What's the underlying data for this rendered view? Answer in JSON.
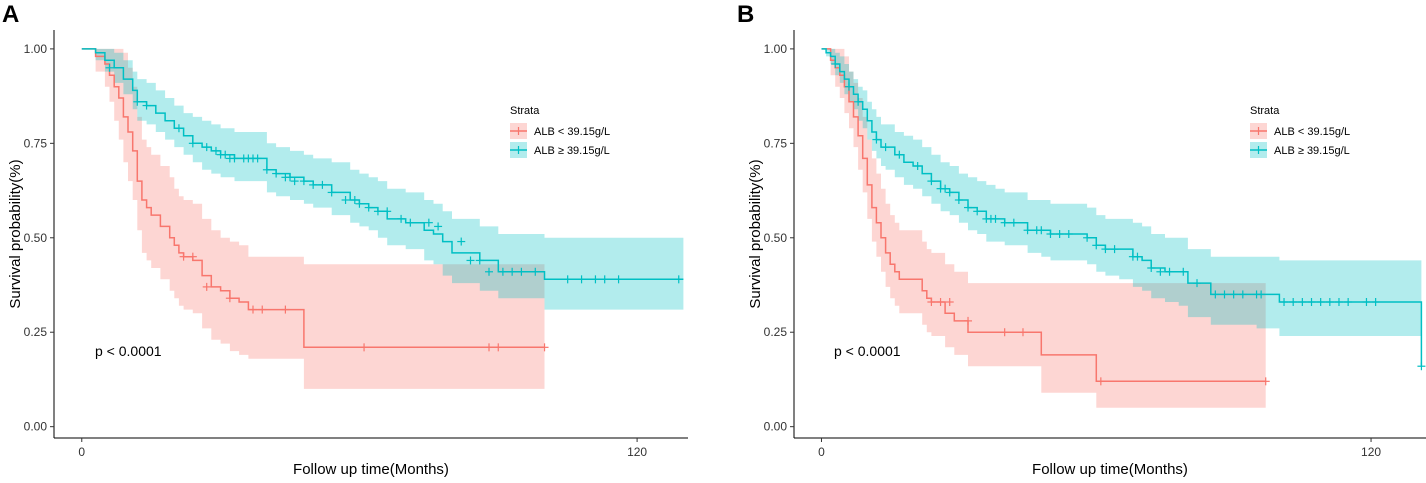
{
  "chart_data": [
    {
      "type": "line",
      "panel_label": "A",
      "xlabel": "Follow up time(Months)",
      "ylabel": "Survival probability(%)",
      "xlim": [
        -6,
        131
      ],
      "ylim": [
        -0.03,
        1.05
      ],
      "x_ticks": [
        0,
        120
      ],
      "x_tick_labels": [
        "0",
        "120"
      ],
      "y_ticks": [
        0,
        0.25,
        0.5,
        0.75,
        1.0
      ],
      "y_tick_labels": [
        "0.00",
        "0.25",
        "0.50",
        "0.75",
        "1.00"
      ],
      "legend": {
        "title": "Strata",
        "position": "top-right"
      },
      "annotation": "p < 0.0001",
      "series": [
        {
          "name": "ALB < 39.15g/L",
          "color": "#F8766D",
          "fill": "#F8766D",
          "x": [
            0,
            3,
            5,
            6,
            7,
            8,
            9,
            10,
            11,
            12,
            13,
            14,
            15,
            17,
            19,
            20,
            21,
            22,
            23,
            24,
            26,
            28,
            30,
            32,
            34,
            36,
            38,
            40,
            42,
            44,
            48,
            60,
            80,
            100
          ],
          "y": [
            1.0,
            0.98,
            0.96,
            0.93,
            0.9,
            0.87,
            0.82,
            0.78,
            0.73,
            0.65,
            0.6,
            0.58,
            0.56,
            0.53,
            0.5,
            0.48,
            0.46,
            0.45,
            0.45,
            0.44,
            0.4,
            0.37,
            0.36,
            0.34,
            0.33,
            0.31,
            0.31,
            0.31,
            0.31,
            0.31,
            0.21,
            0.21,
            0.21,
            0.21
          ],
          "lower": [
            1.0,
            0.94,
            0.9,
            0.86,
            0.81,
            0.76,
            0.7,
            0.65,
            0.6,
            0.52,
            0.46,
            0.44,
            0.42,
            0.39,
            0.36,
            0.34,
            0.32,
            0.31,
            0.31,
            0.3,
            0.26,
            0.23,
            0.22,
            0.2,
            0.19,
            0.18,
            0.18,
            0.18,
            0.18,
            0.18,
            0.1,
            0.1,
            0.1,
            0.1
          ],
          "upper": [
            1.0,
            1.0,
            1.0,
            1.0,
            1.0,
            1.0,
            0.99,
            0.95,
            0.9,
            0.82,
            0.76,
            0.74,
            0.72,
            0.69,
            0.66,
            0.63,
            0.61,
            0.6,
            0.6,
            0.59,
            0.55,
            0.52,
            0.5,
            0.49,
            0.48,
            0.45,
            0.45,
            0.45,
            0.45,
            0.45,
            0.43,
            0.43,
            0.43,
            0.43
          ],
          "censored_x": [
            22,
            24,
            27,
            32,
            37,
            39,
            44,
            61,
            88,
            90,
            100
          ],
          "censored_y": [
            0.45,
            0.45,
            0.37,
            0.34,
            0.31,
            0.31,
            0.31,
            0.21,
            0.21,
            0.21,
            0.21
          ]
        },
        {
          "name": "ALB ≥ 39.15g/L",
          "color": "#00BFC4",
          "fill": "#00BFC4",
          "x": [
            0,
            3,
            5,
            7,
            9,
            11,
            12,
            14,
            16,
            18,
            20,
            22,
            24,
            26,
            28,
            30,
            33,
            36,
            38,
            40,
            42,
            45,
            48,
            50,
            54,
            58,
            60,
            62,
            64,
            66,
            70,
            74,
            76,
            78,
            80,
            86,
            90,
            100,
            130
          ],
          "y": [
            1.0,
            0.99,
            0.97,
            0.95,
            0.92,
            0.89,
            0.86,
            0.85,
            0.83,
            0.81,
            0.79,
            0.77,
            0.75,
            0.74,
            0.73,
            0.72,
            0.71,
            0.71,
            0.71,
            0.68,
            0.67,
            0.66,
            0.65,
            0.64,
            0.62,
            0.6,
            0.59,
            0.58,
            0.57,
            0.55,
            0.54,
            0.52,
            0.51,
            0.49,
            0.46,
            0.44,
            0.41,
            0.39,
            0.39
          ],
          "lower": [
            1.0,
            0.97,
            0.94,
            0.91,
            0.88,
            0.84,
            0.81,
            0.8,
            0.78,
            0.76,
            0.74,
            0.72,
            0.7,
            0.68,
            0.67,
            0.66,
            0.65,
            0.65,
            0.65,
            0.62,
            0.61,
            0.6,
            0.59,
            0.58,
            0.56,
            0.54,
            0.53,
            0.52,
            0.5,
            0.48,
            0.47,
            0.44,
            0.43,
            0.4,
            0.38,
            0.36,
            0.34,
            0.31,
            0.3
          ],
          "upper": [
            1.0,
            1.0,
            1.0,
            0.99,
            0.97,
            0.94,
            0.92,
            0.91,
            0.89,
            0.87,
            0.85,
            0.83,
            0.82,
            0.81,
            0.8,
            0.79,
            0.78,
            0.78,
            0.78,
            0.75,
            0.74,
            0.73,
            0.72,
            0.71,
            0.7,
            0.68,
            0.67,
            0.66,
            0.65,
            0.63,
            0.62,
            0.6,
            0.59,
            0.57,
            0.55,
            0.53,
            0.51,
            0.5,
            0.5
          ],
          "censored_x": [
            6,
            12,
            14,
            21,
            24,
            27,
            29,
            30,
            31,
            32,
            33,
            35,
            36,
            37,
            38,
            40,
            42,
            44,
            45,
            46,
            48,
            50,
            52,
            54,
            57,
            59,
            60,
            62,
            64,
            66,
            69,
            71,
            75,
            77,
            82,
            84,
            86,
            88,
            91,
            93,
            95,
            98,
            105,
            108,
            111,
            113,
            116,
            129
          ],
          "censored_y": [
            0.95,
            0.86,
            0.85,
            0.79,
            0.75,
            0.74,
            0.73,
            0.72,
            0.72,
            0.71,
            0.71,
            0.71,
            0.71,
            0.71,
            0.71,
            0.68,
            0.67,
            0.66,
            0.66,
            0.65,
            0.65,
            0.64,
            0.64,
            0.62,
            0.6,
            0.6,
            0.59,
            0.58,
            0.57,
            0.57,
            0.55,
            0.54,
            0.54,
            0.53,
            0.49,
            0.44,
            0.44,
            0.41,
            0.41,
            0.41,
            0.41,
            0.41,
            0.39,
            0.39,
            0.39,
            0.39,
            0.39,
            0.39
          ]
        }
      ]
    },
    {
      "type": "line",
      "panel_label": "B",
      "xlabel": "Follow up time(Months)",
      "ylabel": "Survival probability(%)",
      "xlim": [
        -6,
        132
      ],
      "ylim": [
        -0.03,
        1.05
      ],
      "x_ticks": [
        0,
        120
      ],
      "x_tick_labels": [
        "0",
        "120"
      ],
      "y_ticks": [
        0,
        0.25,
        0.5,
        0.75,
        1.0
      ],
      "y_tick_labels": [
        "0.00",
        "0.25",
        "0.50",
        "0.75",
        "1.00"
      ],
      "legend": {
        "title": "Strata",
        "position": "top-right"
      },
      "annotation": "p < 0.0001",
      "series": [
        {
          "name": "ALB < 39.15g/L",
          "color": "#F8766D",
          "fill": "#F8766D",
          "x": [
            0,
            2,
            3,
            4,
            5,
            6,
            7,
            8,
            9,
            10,
            11,
            12,
            13,
            14,
            15,
            16,
            17,
            20,
            22,
            23,
            24,
            25,
            27,
            29,
            32,
            38,
            44,
            48,
            60,
            80,
            97
          ],
          "y": [
            1.0,
            0.97,
            0.95,
            0.93,
            0.9,
            0.86,
            0.82,
            0.77,
            0.71,
            0.64,
            0.58,
            0.54,
            0.5,
            0.46,
            0.43,
            0.41,
            0.39,
            0.39,
            0.36,
            0.34,
            0.33,
            0.33,
            0.3,
            0.28,
            0.25,
            0.25,
            0.25,
            0.19,
            0.12,
            0.12,
            0.12
          ],
          "lower": [
            1.0,
            0.93,
            0.9,
            0.87,
            0.83,
            0.79,
            0.74,
            0.68,
            0.62,
            0.55,
            0.49,
            0.45,
            0.41,
            0.37,
            0.34,
            0.32,
            0.3,
            0.3,
            0.27,
            0.25,
            0.24,
            0.24,
            0.21,
            0.19,
            0.16,
            0.16,
            0.16,
            0.09,
            0.05,
            0.05,
            0.05
          ],
          "upper": [
            1.0,
            1.0,
            1.0,
            1.0,
            0.98,
            0.94,
            0.91,
            0.87,
            0.82,
            0.76,
            0.71,
            0.67,
            0.63,
            0.59,
            0.56,
            0.54,
            0.52,
            0.52,
            0.49,
            0.47,
            0.46,
            0.46,
            0.43,
            0.41,
            0.38,
            0.38,
            0.38,
            0.38,
            0.38,
            0.38,
            0.38
          ],
          "censored_x": [
            24,
            26,
            28,
            32,
            40,
            44,
            61,
            97
          ],
          "censored_y": [
            0.33,
            0.33,
            0.33,
            0.28,
            0.25,
            0.25,
            0.12,
            0.12
          ]
        },
        {
          "name": "ALB ≥ 39.15g/L",
          "color": "#00BFC4",
          "fill": "#00BFC4",
          "x": [
            0,
            1,
            2,
            3,
            4,
            5,
            6,
            7,
            8,
            9,
            10,
            11,
            12,
            13,
            14,
            16,
            18,
            20,
            22,
            24,
            26,
            28,
            30,
            32,
            34,
            36,
            38,
            40,
            42,
            45,
            48,
            50,
            52,
            55,
            58,
            60,
            62,
            65,
            68,
            70,
            72,
            75,
            78,
            80,
            85,
            90,
            95,
            100,
            105,
            110,
            115,
            120,
            130,
            131
          ],
          "y": [
            1.0,
            0.99,
            0.98,
            0.96,
            0.94,
            0.92,
            0.9,
            0.88,
            0.86,
            0.84,
            0.81,
            0.78,
            0.76,
            0.74,
            0.74,
            0.72,
            0.7,
            0.69,
            0.67,
            0.65,
            0.63,
            0.62,
            0.6,
            0.58,
            0.57,
            0.55,
            0.55,
            0.54,
            0.54,
            0.52,
            0.52,
            0.51,
            0.51,
            0.51,
            0.5,
            0.48,
            0.47,
            0.47,
            0.45,
            0.44,
            0.42,
            0.41,
            0.41,
            0.38,
            0.35,
            0.35,
            0.35,
            0.33,
            0.33,
            0.33,
            0.33,
            0.33,
            0.33,
            0.16
          ],
          "lower": [
            1.0,
            0.98,
            0.96,
            0.93,
            0.91,
            0.88,
            0.86,
            0.84,
            0.81,
            0.79,
            0.76,
            0.73,
            0.71,
            0.69,
            0.68,
            0.66,
            0.64,
            0.63,
            0.61,
            0.59,
            0.57,
            0.56,
            0.54,
            0.52,
            0.51,
            0.49,
            0.49,
            0.48,
            0.48,
            0.46,
            0.45,
            0.44,
            0.44,
            0.44,
            0.43,
            0.41,
            0.4,
            0.39,
            0.37,
            0.36,
            0.34,
            0.33,
            0.32,
            0.29,
            0.27,
            0.27,
            0.26,
            0.24,
            0.24,
            0.24,
            0.24,
            0.24,
            0.24,
            0.24
          ],
          "upper": [
            1.0,
            1.0,
            1.0,
            0.99,
            0.98,
            0.96,
            0.94,
            0.92,
            0.9,
            0.89,
            0.86,
            0.84,
            0.82,
            0.8,
            0.8,
            0.78,
            0.77,
            0.76,
            0.74,
            0.72,
            0.7,
            0.69,
            0.67,
            0.66,
            0.65,
            0.64,
            0.63,
            0.62,
            0.62,
            0.6,
            0.6,
            0.59,
            0.59,
            0.59,
            0.58,
            0.56,
            0.55,
            0.55,
            0.54,
            0.53,
            0.51,
            0.5,
            0.5,
            0.47,
            0.45,
            0.45,
            0.45,
            0.44,
            0.44,
            0.44,
            0.44,
            0.44,
            0.44,
            0.44
          ],
          "censored_x": [
            3,
            6,
            8,
            12,
            14,
            17,
            21,
            24,
            26,
            27,
            28,
            30,
            32,
            34,
            36,
            37,
            38,
            40,
            42,
            45,
            47,
            48,
            50,
            52,
            54,
            58,
            60,
            62,
            64,
            68,
            69,
            72,
            74,
            76,
            79,
            82,
            86,
            88,
            90,
            92,
            95,
            96,
            101,
            103,
            105,
            107,
            109,
            111,
            113,
            115,
            119,
            121,
            131
          ],
          "censored_y": [
            0.96,
            0.9,
            0.86,
            0.76,
            0.74,
            0.72,
            0.69,
            0.65,
            0.63,
            0.63,
            0.62,
            0.6,
            0.58,
            0.57,
            0.55,
            0.55,
            0.55,
            0.54,
            0.54,
            0.52,
            0.52,
            0.52,
            0.51,
            0.51,
            0.51,
            0.5,
            0.48,
            0.47,
            0.47,
            0.45,
            0.45,
            0.42,
            0.41,
            0.41,
            0.41,
            0.38,
            0.35,
            0.35,
            0.35,
            0.35,
            0.35,
            0.35,
            0.33,
            0.33,
            0.33,
            0.33,
            0.33,
            0.33,
            0.33,
            0.33,
            0.33,
            0.33,
            0.16
          ]
        }
      ]
    }
  ]
}
